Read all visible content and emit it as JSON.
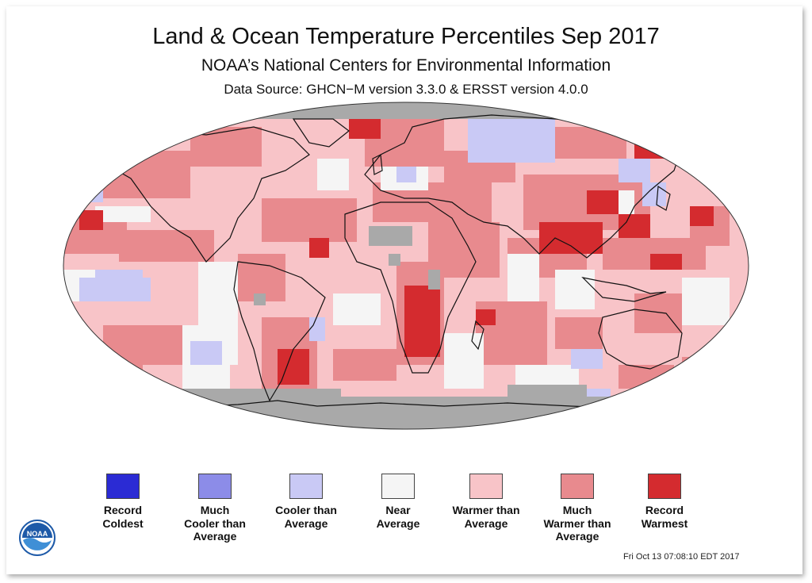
{
  "header": {
    "title": "Land & Ocean Temperature Percentiles Sep 2017",
    "subtitle": "NOAA’s National Centers for Environmental Information",
    "source": "Data Source: GHCN−M version 3.3.0 & ERSST version 4.0.0"
  },
  "colors": {
    "record_coldest": "#2b2bd4",
    "much_cooler": "#8c8ce8",
    "cooler": "#c9c9f5",
    "near": "#f5f5f5",
    "warmer": "#f8c4c8",
    "much_warmer": "#e88a8e",
    "record_warmest": "#d42b2f",
    "missing": "#a9a9a9",
    "coastline": "#111111"
  },
  "legend": [
    {
      "label": "Record\nColdest",
      "color": "#2b2bd4"
    },
    {
      "label": "Much\nCooler than\nAverage",
      "color": "#8c8ce8"
    },
    {
      "label": "Cooler than\nAverage",
      "color": "#c9c9f5"
    },
    {
      "label": "Near\nAverage",
      "color": "#f5f5f5"
    },
    {
      "label": "Warmer than\nAverage",
      "color": "#f8c4c8"
    },
    {
      "label": "Much\nWarmer than\nAverage",
      "color": "#e88a8e"
    },
    {
      "label": "Record\nWarmest",
      "color": "#d42b2f"
    }
  ],
  "timestamp": "Fri Oct 13 07:08:10 EDT 2017",
  "logo": {
    "icon": "noaa-logo",
    "text": "NOAA"
  }
}
